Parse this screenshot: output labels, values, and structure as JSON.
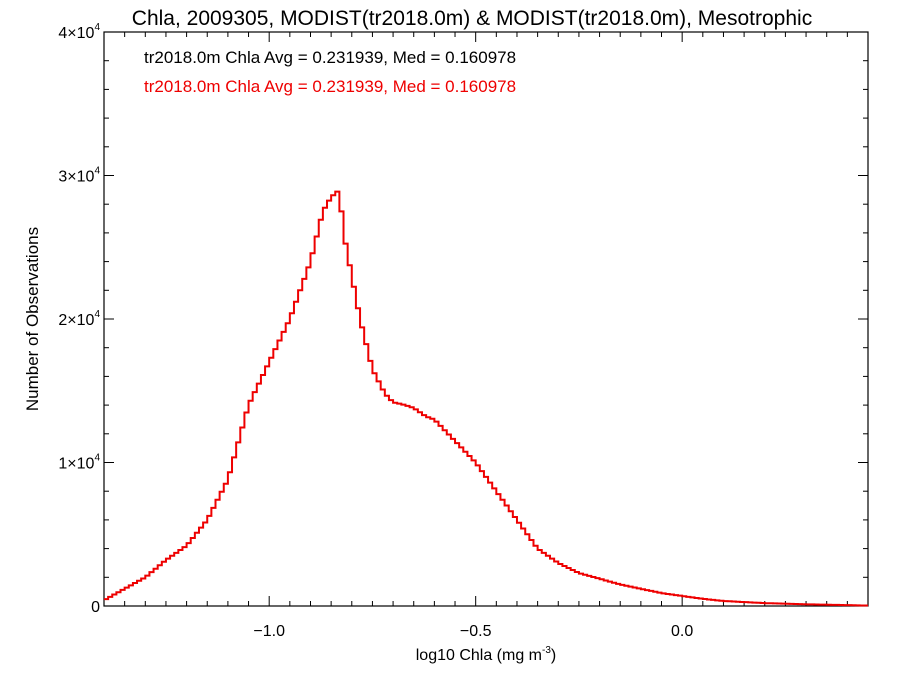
{
  "chart_data": {
    "type": "line",
    "title": "Chla, 2009305, MODIST(tr2018.0m) & MODIST(tr2018.0m), Mesotrophic",
    "xlabel": "log10 Chla (mg m",
    "xlabel_sup": "-3",
    "xlabel_end": ")",
    "ylabel": "Number of Observations",
    "xlim": [
      -1.4,
      0.45
    ],
    "ylim": [
      0,
      40000
    ],
    "x_ticks": [
      {
        "value": -1.0,
        "label": "-1.0"
      },
      {
        "value": -0.5,
        "label": "-0.5"
      },
      {
        "value": 0.0,
        "label": "0.0"
      }
    ],
    "y_ticks": [
      {
        "value": 0,
        "mant": "0",
        "exp": ""
      },
      {
        "value": 10000,
        "mant": "1×10",
        "exp": "4"
      },
      {
        "value": 20000,
        "mant": "2×10",
        "exp": "4"
      },
      {
        "value": 30000,
        "mant": "3×10",
        "exp": "4"
      },
      {
        "value": 40000,
        "mant": "4×10",
        "exp": "4"
      }
    ],
    "annotations": [
      {
        "text": "tr2018.0m Chla Avg = 0.231939, Med = 0.160978",
        "color": "#000000"
      },
      {
        "text": "tr2018.0m Chla Avg = 0.231939, Med = 0.160978",
        "color": "#ee0000"
      }
    ],
    "series": [
      {
        "color": "#ee0000",
        "step": true,
        "x": [
          -1.4,
          -1.35,
          -1.3,
          -1.25,
          -1.2,
          -1.15,
          -1.1,
          -1.05,
          -1.0,
          -0.95,
          -0.9,
          -0.87,
          -0.85,
          -0.83,
          -0.82,
          -0.8,
          -0.78,
          -0.75,
          -0.72,
          -0.7,
          -0.67,
          -0.65,
          -0.62,
          -0.6,
          -0.55,
          -0.5,
          -0.45,
          -0.4,
          -0.35,
          -0.3,
          -0.25,
          -0.2,
          -0.15,
          -0.1,
          -0.05,
          0.0,
          0.05,
          0.1,
          0.2,
          0.3,
          0.4,
          0.45
        ],
        "y": [
          400,
          1200,
          2000,
          3200,
          4200,
          6000,
          8800,
          14000,
          17000,
          20000,
          24000,
          27500,
          28500,
          29000,
          26000,
          23000,
          20000,
          16500,
          14800,
          14200,
          14000,
          13800,
          13200,
          13000,
          11500,
          10000,
          8000,
          6000,
          4000,
          3000,
          2300,
          1900,
          1500,
          1200,
          900,
          700,
          500,
          350,
          200,
          120,
          60,
          30
        ]
      }
    ]
  }
}
